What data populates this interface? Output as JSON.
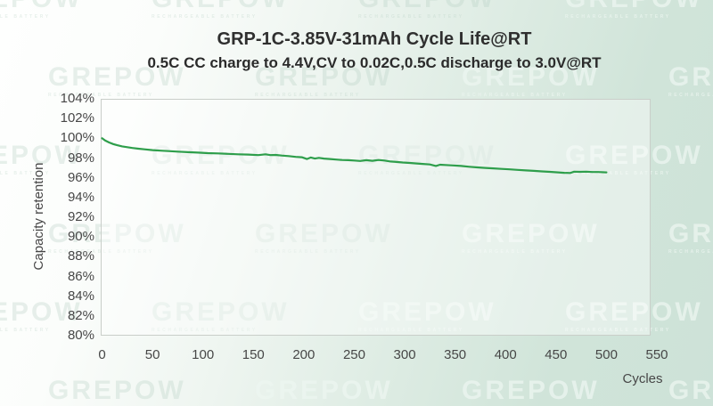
{
  "watermark": {
    "text": "GREPOW",
    "subtext": "RECHARGEABLE BATTERY"
  },
  "header": {
    "title": "GRP-1C-3.85V-31mAh Cycle Life@RT",
    "subtitle": "0.5C CC charge to 4.4V,CV to 0.02C,0.5C discharge to 3.0V@RT"
  },
  "chart_data": {
    "type": "line",
    "title": "GRP-1C-3.85V-31mAh Cycle Life@RT",
    "subtitle": "0.5C CC charge to 4.4V,CV to 0.02C,0.5C discharge to 3.0V@RT",
    "xlabel": "Cycles",
    "ylabel": "Capacity retention",
    "xlim": [
      0,
      550
    ],
    "ylim_percent": [
      80,
      104
    ],
    "x_ticks": [
      0,
      50,
      100,
      150,
      200,
      250,
      300,
      350,
      400,
      450,
      500,
      550
    ],
    "y_tick_labels": [
      "104%",
      "102%",
      "100%",
      "98%",
      "96%",
      "94%",
      "92%",
      "90%",
      "88%",
      "86%",
      "84%",
      "82%",
      "80%"
    ],
    "y_tick_values": [
      104,
      102,
      100,
      98,
      96,
      94,
      92,
      90,
      88,
      86,
      84,
      82,
      80
    ],
    "grid": false,
    "legend": "none",
    "line_color": "#2e9e4b",
    "series": [
      {
        "name": "Capacity retention",
        "x": [
          0,
          3,
          7,
          11,
          15,
          20,
          25,
          30,
          36,
          42,
          50,
          58,
          66,
          75,
          85,
          95,
          105,
          115,
          125,
          135,
          145,
          155,
          162,
          167,
          172,
          178,
          185,
          192,
          198,
          203,
          207,
          211,
          215,
          220,
          226,
          232,
          238,
          244,
          250,
          256,
          262,
          268,
          274,
          280,
          286,
          292,
          298,
          305,
          312,
          318,
          325,
          331,
          335,
          340,
          348,
          356,
          364,
          372,
          380,
          388,
          396,
          404,
          412,
          420,
          428,
          436,
          444,
          452,
          458,
          464,
          468,
          474,
          480,
          486,
          492,
          500
        ],
        "y_percent": [
          100.0,
          99.78,
          99.58,
          99.42,
          99.3,
          99.18,
          99.1,
          99.02,
          98.95,
          98.88,
          98.8,
          98.75,
          98.7,
          98.65,
          98.6,
          98.55,
          98.5,
          98.47,
          98.42,
          98.38,
          98.35,
          98.3,
          98.38,
          98.3,
          98.32,
          98.25,
          98.2,
          98.12,
          98.08,
          97.9,
          98.05,
          97.95,
          98.02,
          97.95,
          97.9,
          97.85,
          97.8,
          97.78,
          97.75,
          97.7,
          97.78,
          97.72,
          97.8,
          97.75,
          97.65,
          97.6,
          97.55,
          97.5,
          97.45,
          97.4,
          97.35,
          97.2,
          97.32,
          97.3,
          97.25,
          97.2,
          97.12,
          97.05,
          97.0,
          96.95,
          96.9,
          96.85,
          96.8,
          96.75,
          96.7,
          96.65,
          96.6,
          96.55,
          96.5,
          96.48,
          96.62,
          96.6,
          96.62,
          96.58,
          96.58,
          96.55
        ]
      }
    ]
  }
}
